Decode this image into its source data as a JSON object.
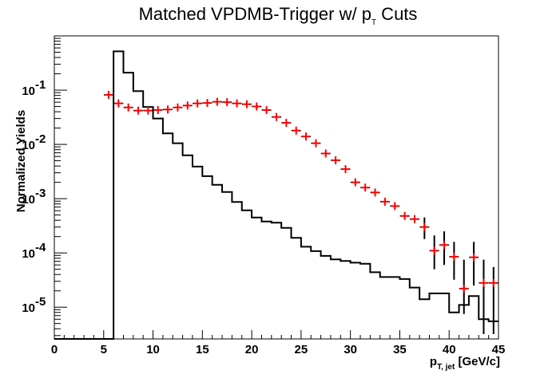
{
  "chart_data": {
    "type": "line",
    "title": "Matched VPDMB-Trigger w/ p_T Cuts",
    "title_parts": {
      "main": "Matched VPDMB-Trigger w/ p",
      "sub": "T",
      "tail": " Cuts"
    },
    "xlabel_parts": {
      "main": "p",
      "sub": "T, jet",
      "tail": " [GeV/c]"
    },
    "ylabel": "Normalized Yields",
    "xlim": [
      0,
      45
    ],
    "ylim": [
      2.6e-06,
      1.0
    ],
    "yscale": "log",
    "x_ticks": [
      0,
      5,
      10,
      15,
      20,
      25,
      30,
      35,
      40,
      45
    ],
    "x_tick_labels": [
      "0",
      "5",
      "10",
      "15",
      "20",
      "25",
      "30",
      "35",
      "40",
      "45"
    ],
    "y_ticks": [
      1e-05,
      0.0001,
      0.001,
      0.01,
      0.1
    ],
    "y_tick_labels": [
      {
        "base": "10",
        "exp": "-5"
      },
      {
        "base": "10",
        "exp": "-4"
      },
      {
        "base": "10",
        "exp": "-3"
      },
      {
        "base": "10",
        "exp": "-2"
      },
      {
        "base": "10",
        "exp": "-1"
      }
    ],
    "grid": false,
    "series": [
      {
        "style": "histogram",
        "color": "#000000",
        "bin_edges": [
          0,
          1,
          2,
          3,
          4,
          5,
          6,
          7,
          8,
          9,
          10,
          11,
          12,
          13,
          14,
          15,
          16,
          17,
          18,
          19,
          20,
          21,
          22,
          23,
          24,
          25,
          26,
          27,
          28,
          29,
          30,
          31,
          32,
          33,
          34,
          35,
          36,
          37,
          38,
          39,
          40,
          41,
          42,
          43,
          44,
          45
        ],
        "values": [
          2.6e-06,
          2.6e-06,
          2.6e-06,
          2.6e-06,
          2.6e-06,
          2.6e-06,
          0.52,
          0.21,
          0.096,
          0.049,
          0.03,
          0.016,
          0.0105,
          0.0063,
          0.0039,
          0.0026,
          0.0018,
          0.00133,
          0.00087,
          0.00061,
          0.00045,
          0.00038,
          0.00036,
          0.00029,
          0.00019,
          0.00013,
          0.000108,
          8.8e-05,
          7.6e-05,
          7.1e-05,
          6.6e-05,
          6.3e-05,
          4.4e-05,
          3.6e-05,
          3.6e-05,
          3.3e-05,
          2.3e-05,
          1.4e-05,
          1.8e-05,
          1.8e-05,
          8e-06,
          1.1e-05,
          1.6e-05,
          6e-06,
          5.5e-06
        ]
      },
      {
        "style": "markers",
        "color": "#ff0000",
        "error_color": "#000000",
        "points": [
          {
            "x": 5.5,
            "y": 0.082
          },
          {
            "x": 6.5,
            "y": 0.057
          },
          {
            "x": 7.5,
            "y": 0.048
          },
          {
            "x": 8.5,
            "y": 0.042
          },
          {
            "x": 9.5,
            "y": 0.042
          },
          {
            "x": 10.5,
            "y": 0.043
          },
          {
            "x": 11.5,
            "y": 0.044
          },
          {
            "x": 12.5,
            "y": 0.048
          },
          {
            "x": 13.5,
            "y": 0.052
          },
          {
            "x": 14.5,
            "y": 0.057
          },
          {
            "x": 15.5,
            "y": 0.058
          },
          {
            "x": 16.5,
            "y": 0.061
          },
          {
            "x": 17.5,
            "y": 0.06
          },
          {
            "x": 18.5,
            "y": 0.057
          },
          {
            "x": 19.5,
            "y": 0.055
          },
          {
            "x": 20.5,
            "y": 0.05
          },
          {
            "x": 21.5,
            "y": 0.043
          },
          {
            "x": 22.5,
            "y": 0.032
          },
          {
            "x": 23.5,
            "y": 0.025
          },
          {
            "x": 24.5,
            "y": 0.018
          },
          {
            "x": 25.5,
            "y": 0.014
          },
          {
            "x": 26.5,
            "y": 0.0105
          },
          {
            "x": 27.5,
            "y": 0.0068
          },
          {
            "x": 28.5,
            "y": 0.0051
          },
          {
            "x": 29.5,
            "y": 0.0035
          },
          {
            "x": 30.5,
            "y": 0.002
          },
          {
            "x": 31.5,
            "y": 0.0016
          },
          {
            "x": 32.5,
            "y": 0.0013
          },
          {
            "x": 33.5,
            "y": 0.00088
          },
          {
            "x": 34.5,
            "y": 0.00073
          },
          {
            "x": 35.5,
            "y": 0.00048
          },
          {
            "x": 36.5,
            "y": 0.00042
          },
          {
            "x": 37.5,
            "y": 0.0003,
            "ylo": 0.00018,
            "yhi": 0.00045
          },
          {
            "x": 38.5,
            "y": 0.00011,
            "ylo": 5e-05,
            "yhi": 0.00021
          },
          {
            "x": 39.5,
            "y": 0.00014,
            "ylo": 6e-05,
            "yhi": 0.00025
          },
          {
            "x": 40.5,
            "y": 8.5e-05,
            "ylo": 3.2e-05,
            "yhi": 0.00016
          },
          {
            "x": 41.5,
            "y": 2.2e-05,
            "ylo": 7.5e-06,
            "yhi": 7.5e-05
          },
          {
            "x": 42.5,
            "y": 8.3e-05,
            "ylo": 2.5e-05,
            "yhi": 0.00016
          },
          {
            "x": 43.5,
            "y": 2.8e-05,
            "ylo": 3.2e-06,
            "yhi": 7.5e-05
          },
          {
            "x": 44.5,
            "y": 2.8e-05,
            "ylo": 3.2e-06,
            "yhi": 5.5e-05
          }
        ]
      }
    ]
  }
}
